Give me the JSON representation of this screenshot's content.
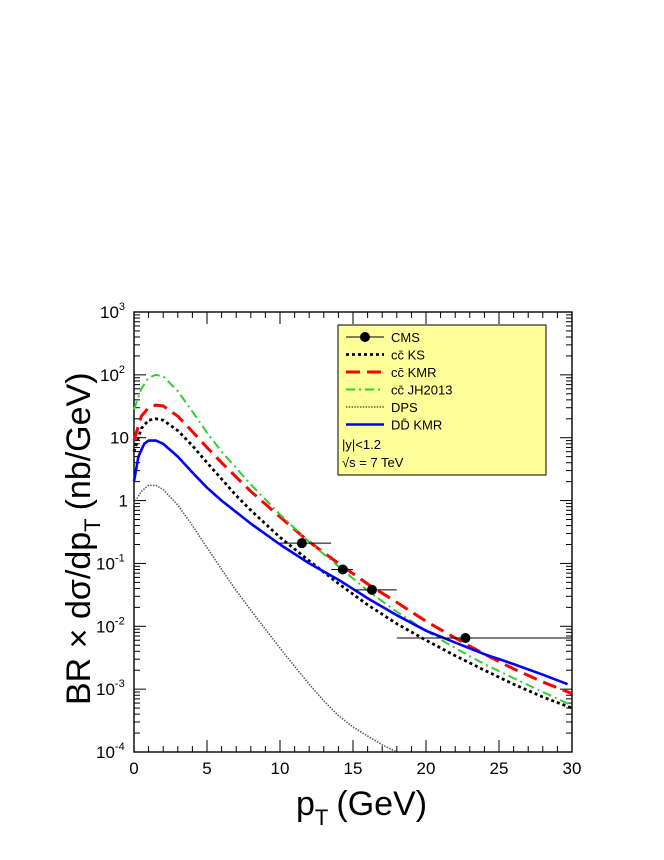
{
  "chart_data": {
    "type": "line",
    "title": "",
    "xlabel": "p",
    "xlabel_sub": "T",
    "xlabel_unit": "(GeV)",
    "ylabel_main": "BR × dσ/dp",
    "ylabel_sub": "T",
    "ylabel_unit": "(nb/GeV)",
    "xlim": [
      0,
      30
    ],
    "ylim": [
      0.0001,
      1000
    ],
    "yscale": "log",
    "x_ticks": [
      0,
      5,
      10,
      15,
      20,
      25,
      30
    ],
    "x_tick_labels": [
      "0",
      "5",
      "10",
      "15",
      "20",
      "25",
      "30"
    ],
    "y_ticks": [
      {
        "value": 0.0001,
        "base": "10",
        "exp": "-4"
      },
      {
        "value": 0.001,
        "base": "10",
        "exp": "-3"
      },
      {
        "value": 0.01,
        "base": "10",
        "exp": "-2"
      },
      {
        "value": 0.1,
        "base": "10",
        "exp": "-1"
      },
      {
        "value": 1,
        "base": "1",
        "exp": ""
      },
      {
        "value": 10,
        "base": "10",
        "exp": ""
      },
      {
        "value": 100,
        "base": "10",
        "exp": "2"
      },
      {
        "value": 1000,
        "base": "10",
        "exp": "3"
      }
    ],
    "grid": false,
    "legend_position": "top-right",
    "legend_fill": "#ffff99",
    "legend_notes": [
      "|y|<1.2",
      "√s = 7 TeV"
    ],
    "data_points": {
      "name": "CMS",
      "points": [
        {
          "x": 11.5,
          "y": 0.21,
          "xerr": [
            10,
            13.5
          ]
        },
        {
          "x": 14.3,
          "y": 0.08,
          "xerr": [
            13.5,
            15
          ]
        },
        {
          "x": 16.3,
          "y": 0.038,
          "xerr": [
            15,
            18
          ]
        },
        {
          "x": 22.7,
          "y": 0.0065,
          "xerr": [
            18,
            30
          ]
        }
      ]
    },
    "series": [
      {
        "name": "cc̄ KS",
        "color": "#000000",
        "style": "dotted",
        "x": [
          0,
          0.5,
          1,
          1.5,
          2,
          3,
          4,
          5,
          6,
          7,
          8,
          10,
          12,
          14,
          16,
          18,
          20,
          22,
          24,
          26,
          28,
          30
        ],
        "y": [
          6,
          14,
          19,
          20,
          19,
          13,
          7.5,
          4,
          2.2,
          1.2,
          0.7,
          0.26,
          0.11,
          0.048,
          0.022,
          0.011,
          0.006,
          0.0034,
          0.002,
          0.0012,
          0.00075,
          0.0005
        ]
      },
      {
        "name": "cc̄ KMR",
        "color": "#ff0000",
        "style": "dashed",
        "x": [
          0,
          0.5,
          1,
          1.5,
          2,
          3,
          4,
          5,
          6,
          8,
          10,
          12,
          14,
          16,
          18,
          20,
          22,
          24,
          26,
          28,
          30
        ],
        "y": [
          9,
          22,
          30,
          33,
          32,
          22,
          12.5,
          7,
          4,
          1.4,
          0.55,
          0.22,
          0.1,
          0.047,
          0.024,
          0.012,
          0.0065,
          0.0036,
          0.0021,
          0.0013,
          0.00085
        ]
      },
      {
        "name": "cc̄ JH2013",
        "color": "#33cc33",
        "style": "dashdot",
        "x": [
          0,
          0.5,
          1,
          1.5,
          2,
          3,
          4,
          5,
          6,
          8,
          10,
          12,
          14,
          16,
          18,
          20,
          22,
          24,
          26,
          28,
          30
        ],
        "y": [
          28,
          60,
          90,
          100,
          95,
          55,
          26,
          12,
          6,
          1.8,
          0.6,
          0.22,
          0.09,
          0.037,
          0.017,
          0.0085,
          0.0045,
          0.0025,
          0.0015,
          0.0009,
          0.00055
        ]
      },
      {
        "name": "DPS",
        "color": "#555555",
        "style": "finedot",
        "x": [
          0,
          0.5,
          1,
          1.5,
          2,
          3,
          4,
          5,
          6,
          7,
          8,
          9,
          10,
          11,
          12,
          13,
          14,
          15,
          16,
          17,
          18
        ],
        "y": [
          0.9,
          1.4,
          1.75,
          1.75,
          1.5,
          0.85,
          0.4,
          0.18,
          0.08,
          0.037,
          0.018,
          0.009,
          0.0045,
          0.0023,
          0.0012,
          0.00065,
          0.00038,
          0.00025,
          0.00018,
          0.00013,
          0.0001
        ]
      },
      {
        "name": "DD̄ KMR",
        "color": "#0000ff",
        "style": "solid",
        "x": [
          0,
          0.3,
          0.7,
          1,
          1.5,
          2,
          3,
          4,
          5,
          6,
          8,
          10,
          12,
          14,
          16,
          18,
          20,
          22,
          24,
          26,
          28,
          29.7
        ],
        "y": [
          2,
          5,
          8,
          9,
          9,
          8,
          5,
          2.8,
          1.6,
          1,
          0.43,
          0.2,
          0.1,
          0.055,
          0.028,
          0.015,
          0.0085,
          0.0055,
          0.0036,
          0.0025,
          0.0017,
          0.0012
        ]
      }
    ],
    "legend": [
      {
        "label": "CMS",
        "kind": "marker"
      },
      {
        "label": "cc̄ KS",
        "kind": "line",
        "series": 0
      },
      {
        "label": "cc̄ KMR",
        "kind": "line",
        "series": 1
      },
      {
        "label": "cc̄ JH2013",
        "kind": "line",
        "series": 2
      },
      {
        "label": "DPS",
        "kind": "line",
        "series": 3
      },
      {
        "label": "DD̄ KMR",
        "kind": "line",
        "series": 4
      }
    ]
  }
}
